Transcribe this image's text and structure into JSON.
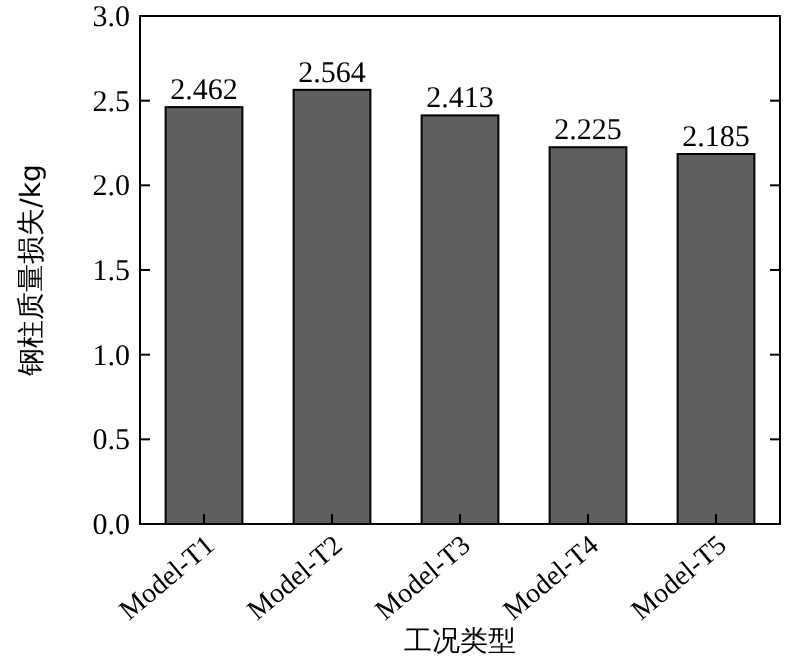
{
  "chart_data": {
    "type": "bar",
    "xlabel": "工况类型",
    "ylabel": "钢柱质量损失/kg",
    "categories": [
      "Model-T1",
      "Model-T2",
      "Model-T3",
      "Model-T4",
      "Model-T5"
    ],
    "values": [
      2.462,
      2.564,
      2.413,
      2.225,
      2.185
    ],
    "color": "#5f5f5f",
    "ylim": [
      0,
      3.0
    ],
    "yticks": [
      {
        "value": 0,
        "label": "0.0"
      },
      {
        "value": 0.5,
        "label": "0.5"
      },
      {
        "value": 1,
        "label": "1.0"
      },
      {
        "value": 1.5,
        "label": "1.5"
      },
      {
        "value": 2,
        "label": "2.0"
      },
      {
        "value": 2.5,
        "label": "2.5"
      },
      {
        "value": 3,
        "label": "3.0"
      }
    ],
    "data_labels": true
  }
}
